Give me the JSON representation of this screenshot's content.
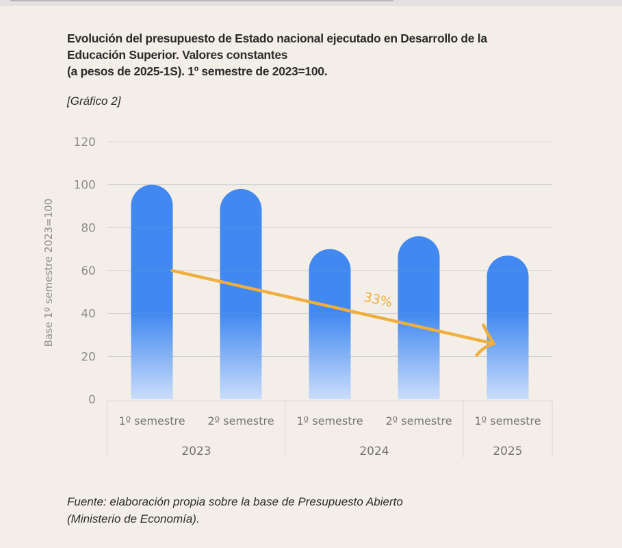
{
  "title_lines": [
    "Evolución del presupuesto de Estado nacional ejecutado en Desarrollo de la",
    "Educación Superior. Valores constantes",
    "(a pesos de 2025-1S). 1º semestre de 2023=100."
  ],
  "subtitle": "[Gráfico 2]",
  "source_lines": [
    "Fuente: elaboración propia sobre la base de Presupuesto Abierto",
    "(Ministerio de Economía)."
  ],
  "colors": {
    "bar": "#4189F0",
    "bar_light": "#CADDFB",
    "arrow": "#F0AE3C",
    "grid": "#DCD8D2",
    "background": "#F3EFE8"
  },
  "chart_data": {
    "type": "bar",
    "title": "Evolución del presupuesto de Estado nacional ejecutado en Desarrollo de la Educación Superior. Valores constantes (a pesos de 2025-1S). 1º semestre de 2023=100.",
    "xlabel": "",
    "ylabel": "Base 1º semestre 2023=100",
    "ylim": [
      0,
      120
    ],
    "yticks": [
      "0",
      "20",
      "40",
      "60",
      "80",
      "100",
      "120"
    ],
    "grid": true,
    "categories": [
      "1º semestre",
      "2º semestre",
      "1º semestre",
      "2º semestre",
      "1º semestre"
    ],
    "groups": [
      {
        "label": "2023",
        "count": 2
      },
      {
        "label": "2024",
        "count": 2
      },
      {
        "label": "2025",
        "count": 1
      }
    ],
    "values": [
      100,
      98,
      70,
      76,
      67
    ],
    "annotation": {
      "text": "33%",
      "type": "arrow",
      "from_category": 0,
      "to_category": 4,
      "from_value": 60,
      "to_value": 26
    }
  }
}
